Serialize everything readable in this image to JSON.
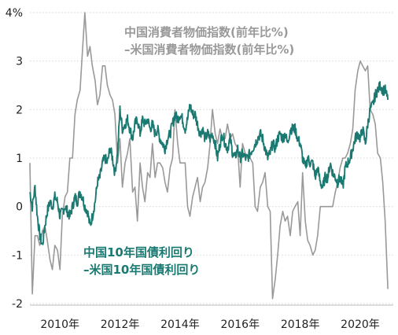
{
  "chart_data": {
    "type": "line",
    "title": "",
    "xlabel": "",
    "ylabel": "",
    "xlim": [
      2009.0,
      2021.1
    ],
    "ylim": [
      -2,
      4
    ],
    "yticks": [
      {
        "value": 4,
        "label": "4%"
      },
      {
        "value": 3,
        "label": "3"
      },
      {
        "value": 2,
        "label": "2"
      },
      {
        "value": 1,
        "label": "1"
      },
      {
        "value": 0,
        "label": "0"
      },
      {
        "value": -1,
        "label": "-1"
      },
      {
        "value": -2,
        "label": "-2"
      }
    ],
    "xticks": [
      {
        "value": 2010,
        "label": "2010年"
      },
      {
        "value": 2012,
        "label": "2012年"
      },
      {
        "value": 2014,
        "label": "2014年"
      },
      {
        "value": 2016,
        "label": "2016年"
      },
      {
        "value": 2018,
        "label": "2018年"
      },
      {
        "value": 2020,
        "label": "2020年"
      }
    ],
    "grid": "horizontal",
    "series": [
      {
        "name": "中国消費者物価指数(前年比%)\n–米国消費者物価指数(前年比%)",
        "color": "#999999",
        "x": [
          2009.0,
          2009.08,
          2009.17,
          2009.25,
          2009.33,
          2009.42,
          2009.5,
          2009.58,
          2009.67,
          2009.75,
          2009.83,
          2009.92,
          2010.0,
          2010.08,
          2010.17,
          2010.25,
          2010.33,
          2010.42,
          2010.5,
          2010.58,
          2010.67,
          2010.75,
          2010.83,
          2010.92,
          2011.0,
          2011.08,
          2011.17,
          2011.25,
          2011.33,
          2011.42,
          2011.5,
          2011.58,
          2011.67,
          2011.75,
          2011.83,
          2011.92,
          2012.0,
          2012.08,
          2012.17,
          2012.25,
          2012.33,
          2012.42,
          2012.5,
          2012.58,
          2012.67,
          2012.75,
          2012.83,
          2012.92,
          2013.0,
          2013.08,
          2013.17,
          2013.25,
          2013.33,
          2013.42,
          2013.5,
          2013.58,
          2013.67,
          2013.75,
          2013.83,
          2013.92,
          2014.0,
          2014.08,
          2014.17,
          2014.25,
          2014.33,
          2014.42,
          2014.5,
          2014.58,
          2014.67,
          2014.75,
          2014.83,
          2014.92,
          2015.0,
          2015.08,
          2015.17,
          2015.25,
          2015.33,
          2015.42,
          2015.5,
          2015.58,
          2015.67,
          2015.75,
          2015.83,
          2015.92,
          2016.0,
          2016.08,
          2016.17,
          2016.25,
          2016.33,
          2016.42,
          2016.5,
          2016.58,
          2016.67,
          2016.75,
          2016.83,
          2016.92,
          2017.0,
          2017.08,
          2017.17,
          2017.25,
          2017.33,
          2017.42,
          2017.5,
          2017.58,
          2017.67,
          2017.75,
          2017.83,
          2017.92,
          2018.0,
          2018.08,
          2018.17,
          2018.25,
          2018.33,
          2018.42,
          2018.5,
          2018.58,
          2018.67,
          2018.75,
          2018.83,
          2018.92,
          2019.0,
          2019.08,
          2019.17,
          2019.25,
          2019.33,
          2019.42,
          2019.5,
          2019.58,
          2019.67,
          2019.75,
          2019.83,
          2019.92,
          2020.0,
          2020.08,
          2020.17,
          2020.25,
          2020.33,
          2020.42,
          2020.5,
          2020.58,
          2020.67,
          2020.75,
          2020.83,
          2020.92
        ],
        "values": [
          0.9,
          -1.8,
          -0.6,
          -0.6,
          -0.8,
          -0.5,
          -0.4,
          -0.7,
          -1.1,
          -1.3,
          -0.8,
          -0.9,
          -1.3,
          -0.2,
          0.2,
          0.3,
          1.0,
          1.0,
          1.9,
          2.2,
          2.4,
          3.2,
          4.0,
          3.1,
          3.3,
          2.9,
          2.6,
          2.1,
          2.3,
          2.9,
          2.9,
          2.5,
          2.3,
          2.2,
          1.9,
          0.9,
          1.4,
          0.4,
          0.9,
          1.1,
          1.4,
          0.3,
          0.4,
          -0.3,
          0.9,
          0.4,
          0.1,
          0.7,
          0.6,
          1.3,
          0.6,
          0.9,
          0.9,
          0.8,
          0.5,
          0.3,
          0.8,
          1.0,
          2.0,
          1.3,
          0.9,
          0.9,
          0.9,
          0.0,
          -0.2,
          0.2,
          0.4,
          0.6,
          0.1,
          0.4,
          0.5,
          0.8,
          1.3,
          2.0,
          1.5,
          1.3,
          1.6,
          1.4,
          1.4,
          1.7,
          1.4,
          1.5,
          1.3,
          1.2,
          0.4,
          1.3,
          1.1,
          1.0,
          1.0,
          0.9,
          0.0,
          -0.1,
          0.4,
          0.5,
          0.7,
          0.0,
          -0.1,
          -1.9,
          -1.5,
          -1.0,
          -0.4,
          -0.1,
          -0.3,
          -0.2,
          -0.6,
          -0.1,
          0.0,
          0.1,
          -0.6,
          0.7,
          -0.3,
          -0.7,
          -0.8,
          -1.0,
          -0.9,
          -0.6,
          0.0,
          0.0,
          0.0,
          0.0,
          0.0,
          0.0,
          0.3,
          0.5,
          0.8,
          1.0,
          1.0,
          1.1,
          1.3,
          1.6,
          2.4,
          2.8,
          3.0,
          2.9,
          2.8,
          2.9,
          2.0,
          1.9,
          1.7,
          1.1,
          1.0,
          0.5,
          -0.3,
          -1.7
        ]
      },
      {
        "name": "中国10年国債利回り\n–米国10年国債利回り",
        "color": "#1a7a72",
        "x": [
          2009.0,
          2009.08,
          2009.17,
          2009.25,
          2009.33,
          2009.42,
          2009.5,
          2009.58,
          2009.67,
          2009.75,
          2009.83,
          2009.92,
          2010.0,
          2010.08,
          2010.17,
          2010.25,
          2010.33,
          2010.42,
          2010.5,
          2010.58,
          2010.67,
          2010.75,
          2010.83,
          2010.92,
          2011.0,
          2011.08,
          2011.17,
          2011.25,
          2011.33,
          2011.42,
          2011.5,
          2011.58,
          2011.67,
          2011.75,
          2011.83,
          2011.92,
          2012.0,
          2012.08,
          2012.17,
          2012.25,
          2012.33,
          2012.42,
          2012.5,
          2012.58,
          2012.67,
          2012.75,
          2012.83,
          2012.92,
          2013.0,
          2013.08,
          2013.17,
          2013.25,
          2013.33,
          2013.42,
          2013.5,
          2013.58,
          2013.67,
          2013.75,
          2013.83,
          2013.92,
          2014.0,
          2014.08,
          2014.17,
          2014.25,
          2014.33,
          2014.42,
          2014.5,
          2014.58,
          2014.67,
          2014.75,
          2014.83,
          2014.92,
          2015.0,
          2015.08,
          2015.17,
          2015.25,
          2015.33,
          2015.42,
          2015.5,
          2015.58,
          2015.67,
          2015.75,
          2015.83,
          2015.92,
          2016.0,
          2016.08,
          2016.17,
          2016.25,
          2016.33,
          2016.42,
          2016.5,
          2016.58,
          2016.67,
          2016.75,
          2016.83,
          2016.92,
          2017.0,
          2017.08,
          2017.17,
          2017.25,
          2017.33,
          2017.42,
          2017.5,
          2017.58,
          2017.67,
          2017.75,
          2017.83,
          2017.92,
          2018.0,
          2018.08,
          2018.17,
          2018.25,
          2018.33,
          2018.42,
          2018.5,
          2018.58,
          2018.67,
          2018.75,
          2018.83,
          2018.92,
          2019.0,
          2019.08,
          2019.17,
          2019.25,
          2019.33,
          2019.42,
          2019.5,
          2019.58,
          2019.67,
          2019.75,
          2019.83,
          2019.92,
          2020.0,
          2020.08,
          2020.17,
          2020.25,
          2020.33,
          2020.42,
          2020.5,
          2020.58,
          2020.67,
          2020.75,
          2020.83,
          2020.92
        ],
        "values": [
          0.3,
          0.0,
          0.4,
          -0.2,
          -0.6,
          -0.8,
          -0.4,
          -0.1,
          0.1,
          0.0,
          0.2,
          0.1,
          -0.2,
          -0.1,
          0.0,
          -0.1,
          -0.2,
          0.0,
          0.2,
          0.1,
          0.3,
          0.2,
          0.0,
          -0.1,
          -0.4,
          -0.2,
          0.1,
          0.5,
          0.6,
          0.9,
          1.0,
          0.9,
          1.2,
          1.0,
          0.7,
          1.1,
          2.0,
          1.6,
          1.7,
          1.8,
          1.6,
          1.4,
          1.7,
          1.8,
          1.5,
          1.8,
          1.7,
          1.8,
          1.6,
          1.7,
          1.5,
          1.6,
          1.4,
          1.3,
          1.2,
          1.4,
          1.5,
          1.7,
          1.9,
          1.8,
          1.9,
          1.8,
          1.6,
          1.8,
          2.1,
          1.9,
          1.9,
          1.7,
          1.5,
          1.6,
          1.4,
          1.5,
          1.4,
          1.5,
          1.3,
          1.0,
          1.3,
          1.5,
          1.3,
          1.2,
          1.4,
          1.1,
          1.0,
          1.2,
          1.0,
          1.1,
          1.0,
          1.0,
          1.1,
          1.2,
          1.3,
          1.4,
          1.5,
          1.4,
          1.2,
          1.0,
          1.1,
          1.3,
          1.2,
          1.4,
          1.5,
          1.4,
          1.5,
          1.3,
          1.6,
          1.6,
          1.6,
          1.4,
          1.3,
          1.0,
          0.8,
          1.0,
          0.9,
          0.9,
          0.6,
          0.8,
          0.5,
          0.4,
          0.6,
          0.6,
          0.9,
          0.7,
          0.6,
          0.5,
          0.6,
          0.4,
          0.8,
          0.9,
          1.0,
          1.2,
          1.4,
          1.5,
          1.4,
          1.6,
          1.3,
          1.7,
          2.0,
          2.1,
          2.3,
          2.4,
          2.5,
          2.4,
          2.4,
          2.2
        ]
      }
    ],
    "legend": {
      "placement": "in-plot",
      "grey": {
        "line1": "中国消費者物価指数(前年比%)",
        "line2": "–米国消費者物価指数(前年比%)"
      },
      "teal": {
        "line1": "中国10年国債利回り",
        "line2": "–米国10年国債利回り"
      }
    }
  }
}
